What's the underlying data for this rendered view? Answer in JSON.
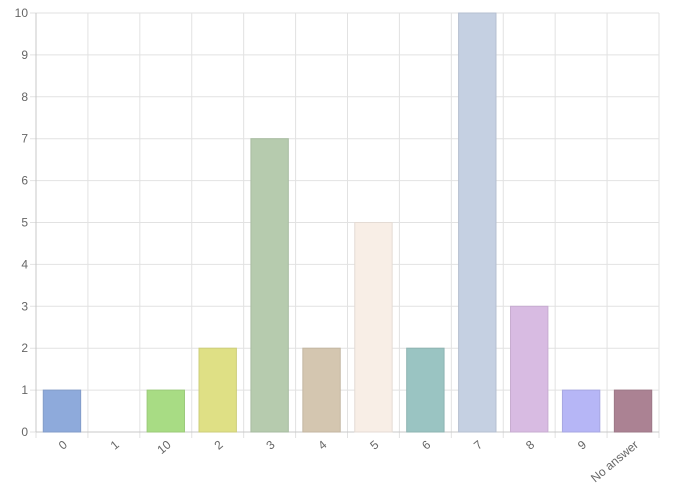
{
  "chart_data": {
    "type": "bar",
    "categories": [
      "0",
      "1",
      "10",
      "2",
      "3",
      "4",
      "5",
      "6",
      "7",
      "8",
      "9",
      "No answer"
    ],
    "values": [
      1,
      0,
      1,
      2,
      7,
      2,
      5,
      2,
      10,
      3,
      1,
      1
    ],
    "colors": [
      "#8eaadb",
      "#c9c9c9",
      "#a8dc84",
      "#dfe085",
      "#b6cbae",
      "#d4c6b0",
      "#f8eee6",
      "#9ac4c2",
      "#c5d0e2",
      "#d8bbe2",
      "#b6b6f6",
      "#ab8293"
    ],
    "ylim": [
      0,
      10
    ],
    "yticks": [
      0,
      1,
      2,
      3,
      4,
      5,
      6,
      7,
      8,
      9,
      10
    ],
    "grid": true
  }
}
